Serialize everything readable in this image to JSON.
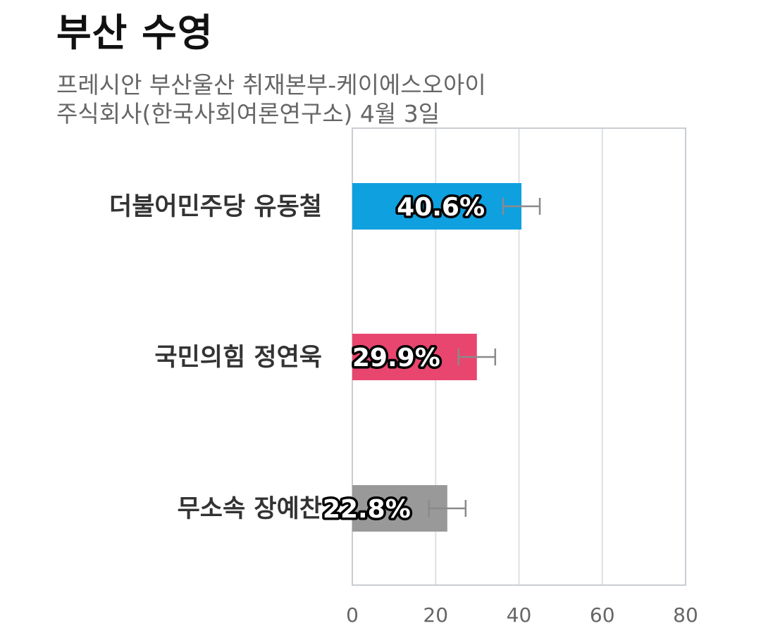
{
  "header": {
    "title": "부산 수영",
    "subtitle_line1": "프레시안 부산울산 취재본부-케이에스오아이",
    "subtitle_line2": "주식회사(한국사회여론연구소) 4월 3일"
  },
  "chart_data": {
    "type": "bar",
    "orientation": "horizontal",
    "title": "부산 수영",
    "categories": [
      "더불어민주당 유동철",
      "국민의힘 정연욱",
      "무소속 장예찬"
    ],
    "values": [
      40.6,
      29.9,
      22.8
    ],
    "value_labels": [
      "40.6%",
      "29.9%",
      "22.8%"
    ],
    "error_margin": 4.4,
    "colors": [
      "#0fa0e0",
      "#e8466f",
      "#999999"
    ],
    "xlim": [
      0,
      80
    ],
    "xticks": [
      0,
      20,
      40,
      60,
      80
    ],
    "xtick_labels": [
      "0",
      "20",
      "40",
      "60",
      "80"
    ],
    "grid": true,
    "legend": "none"
  }
}
